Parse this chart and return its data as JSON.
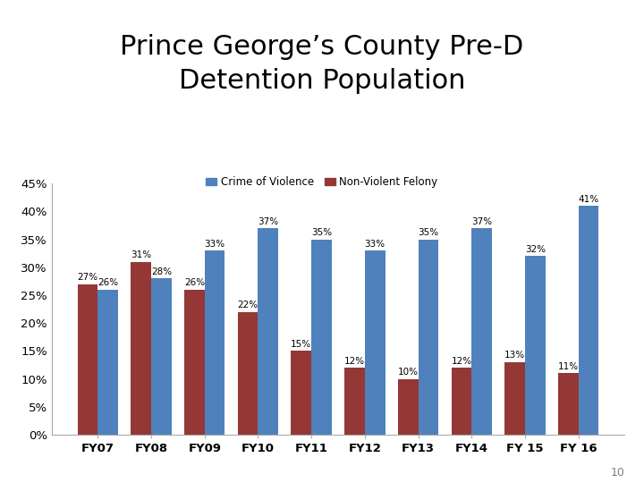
{
  "title": "Prince George’s County Pre-D\nDetention Population",
  "categories": [
    "FY07",
    "FY08",
    "FY09",
    "FY10",
    "FY11",
    "FY12",
    "FY13",
    "FY14",
    "FY 15",
    "FY 16"
  ],
  "crime_of_violence": [
    26,
    28,
    33,
    37,
    35,
    33,
    35,
    37,
    32,
    41
  ],
  "non_violent_felony": [
    27,
    31,
    26,
    22,
    15,
    12,
    10,
    12,
    13,
    11
  ],
  "cov_color": "#4F81BD",
  "nvf_color": "#953734",
  "bar_width": 0.38,
  "ylim": [
    0,
    45
  ],
  "yticks": [
    0,
    5,
    10,
    15,
    20,
    25,
    30,
    35,
    40,
    45
  ],
  "legend_labels": [
    "Crime of Violence",
    "Non-Violent Felony"
  ],
  "title_fontsize": 22,
  "label_fontsize": 7.5,
  "tick_fontsize": 9.5,
  "legend_fontsize": 8.5,
  "background_color": "#ffffff",
  "page_number": "10"
}
